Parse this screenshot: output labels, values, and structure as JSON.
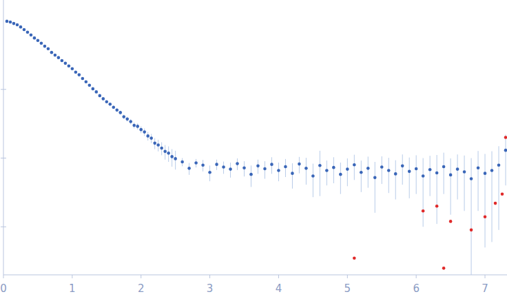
{
  "chart_data": {
    "type": "scatter",
    "log": "y",
    "grid": false,
    "tick_labels": "x",
    "xlim": [
      0,
      7.32
    ],
    "xticks": [
      0,
      1,
      2,
      3,
      4,
      5,
      6,
      7
    ],
    "ylim": [
      0.002,
      20
    ],
    "yticks": [
      0.01,
      0.1,
      1
    ],
    "series": [
      {
        "color": "#3a66b8",
        "marker": "circle",
        "x": [
          0.05,
          0.1,
          0.15,
          0.2,
          0.25,
          0.3,
          0.35,
          0.4,
          0.45,
          0.5,
          0.55,
          0.6,
          0.65,
          0.7,
          0.75,
          0.8,
          0.85,
          0.9,
          0.95,
          1.0,
          1.05,
          1.1,
          1.15,
          1.2,
          1.25,
          1.3,
          1.35,
          1.4,
          1.45,
          1.5,
          1.55,
          1.6,
          1.65,
          1.7,
          1.75,
          1.8,
          1.85,
          1.9,
          1.95,
          2.0,
          2.05,
          2.1,
          2.15,
          2.2,
          2.25,
          2.3,
          2.35,
          2.4,
          2.45,
          2.5,
          2.6,
          2.7,
          2.8,
          2.9,
          3.0,
          3.1,
          3.2,
          3.3,
          3.4,
          3.5,
          3.6,
          3.7,
          3.8,
          3.9,
          4.0,
          4.1,
          4.2,
          4.3,
          4.4,
          4.5,
          4.6,
          4.7,
          4.8,
          4.9,
          5.0,
          5.1,
          5.2,
          5.3,
          5.4,
          5.5,
          5.6,
          5.7,
          5.8,
          5.9,
          6.0,
          6.1,
          6.2,
          6.3,
          6.4,
          6.5,
          6.6,
          6.7,
          6.8,
          6.9,
          7.0,
          7.1,
          7.2,
          7.3
        ],
        "values": [
          9.8,
          9.55,
          9.1,
          8.7,
          8.1,
          7.4,
          6.8,
          6.2,
          5.6,
          5.15,
          4.7,
          4.25,
          3.9,
          3.45,
          3.15,
          2.9,
          2.62,
          2.4,
          2.19,
          2.0,
          1.78,
          1.63,
          1.44,
          1.29,
          1.15,
          1.02,
          0.92,
          0.81,
          0.73,
          0.66,
          0.61,
          0.55,
          0.5,
          0.46,
          0.4,
          0.37,
          0.34,
          0.3,
          0.29,
          0.26,
          0.24,
          0.21,
          0.195,
          0.165,
          0.155,
          0.14,
          0.125,
          0.118,
          0.105,
          0.098,
          0.088,
          0.071,
          0.085,
          0.079,
          0.062,
          0.081,
          0.074,
          0.069,
          0.083,
          0.072,
          0.058,
          0.077,
          0.07,
          0.081,
          0.066,
          0.075,
          0.06,
          0.082,
          0.071,
          0.055,
          0.078,
          0.066,
          0.073,
          0.058,
          0.069,
          0.08,
          0.062,
          0.071,
          0.052,
          0.074,
          0.066,
          0.059,
          0.077,
          0.064,
          0.07,
          0.055,
          0.068,
          0.061,
          0.075,
          0.057,
          0.069,
          0.063,
          0.05,
          0.072,
          0.06,
          0.066,
          0.079,
          0.13
        ],
        "errors": [
          0.05,
          0.05,
          0.05,
          0.04,
          0.04,
          0.04,
          0.04,
          0.03,
          0.03,
          0.03,
          0.03,
          0.03,
          0.03,
          0.03,
          0.03,
          0.03,
          0.03,
          0.03,
          0.03,
          0.03,
          0.03,
          0.03,
          0.03,
          0.03,
          0.03,
          0.03,
          0.03,
          0.03,
          0.03,
          0.03,
          0.03,
          0.03,
          0.03,
          0.03,
          0.03,
          0.03,
          0.03,
          0.03,
          0.03,
          0.03,
          0.03,
          0.03,
          0.03,
          0.03,
          0.03,
          0.03,
          0.03,
          0.03,
          0.03,
          0.03,
          0.012,
          0.014,
          0.012,
          0.015,
          0.016,
          0.014,
          0.015,
          0.017,
          0.016,
          0.018,
          0.02,
          0.018,
          0.02,
          0.022,
          0.02,
          0.022,
          0.024,
          0.022,
          0.03,
          0.028,
          0.05,
          0.026,
          0.03,
          0.028,
          0.03,
          0.032,
          0.03,
          0.034,
          0.036,
          0.032,
          0.035,
          0.034,
          0.036,
          0.038,
          0.04,
          0.045,
          0.04,
          0.05,
          0.045,
          0.042,
          0.044,
          0.046,
          0.05,
          0.055,
          0.055,
          0.06,
          0.07,
          0.09
        ]
      },
      {
        "color": "#e02a2a",
        "marker": "circle",
        "x": [
          5.1,
          6.1,
          6.3,
          6.4,
          6.5,
          6.8,
          7.0,
          7.15,
          7.25,
          7.3
        ],
        "values": [
          0.0035,
          0.017,
          0.02,
          0.0025,
          0.012,
          0.009,
          0.014,
          0.022,
          0.03,
          0.2
        ]
      }
    ]
  }
}
